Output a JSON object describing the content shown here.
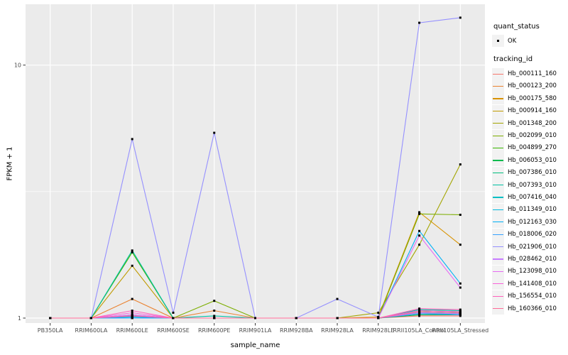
{
  "chart_data": {
    "type": "line",
    "title": "",
    "xlabel": "sample_name",
    "ylabel": "FPKM + 1",
    "y_scale": "log10",
    "y_ticks": [
      1,
      10
    ],
    "y_minor_ticks": [
      3.1623
    ],
    "ylim": [
      0.96,
      17.4
    ],
    "grid": "on",
    "legend_position": "right",
    "panel_bg": "#EBEBEB",
    "grid_color": "#FFFFFF",
    "tick_label_color": "#4D4D4D",
    "point_color": "#000000",
    "categories": [
      "PB350LA",
      "RRIM600LA",
      "RRIM600LE",
      "RRIM600SE",
      "RRIM600PE",
      "RRIM901LA",
      "RRIM928BA",
      "RRIM928LA",
      "RRIM928LE",
      "RRII105LA_Control",
      "RRII105LA_Stressed"
    ],
    "legend": {
      "quant_status_title": "quant_status",
      "quant_status_items": [
        {
          "label": "OK",
          "marker": "black-point"
        }
      ],
      "tracking_id_title": "tracking_id"
    },
    "series": [
      {
        "name": "Hb_000111_160",
        "color": "#F8766D",
        "values": [
          1,
          1,
          1.0,
          1,
          1.0,
          1,
          1,
          1,
          1,
          1.02,
          1.02
        ]
      },
      {
        "name": "Hb_000123_200",
        "color": "#EA8331",
        "values": [
          1,
          1,
          1.19,
          1,
          1.07,
          1,
          1,
          1,
          1,
          1.05,
          1.04
        ]
      },
      {
        "name": "Hb_000175_580",
        "color": "#D89200",
        "values": [
          1,
          1,
          1.02,
          1,
          1.0,
          1,
          1,
          1,
          1.01,
          2.62,
          1.95
        ]
      },
      {
        "name": "Hb_000914_160",
        "color": "#C09B00",
        "values": [
          1,
          1,
          1.61,
          1,
          1.0,
          1,
          1,
          1,
          1,
          1.06,
          1.05
        ]
      },
      {
        "name": "Hb_001348_200",
        "color": "#A3A500",
        "values": [
          1,
          1,
          1.02,
          1,
          1.0,
          1,
          1,
          1,
          1.05,
          1.95,
          4.05
        ]
      },
      {
        "name": "Hb_002099_010",
        "color": "#7CAE00",
        "values": [
          1,
          1,
          1.0,
          1,
          1.17,
          1,
          1,
          1,
          1,
          2.58,
          2.56
        ]
      },
      {
        "name": "Hb_004899_270",
        "color": "#39B600",
        "values": [
          1,
          1,
          1.82,
          1,
          1.0,
          1,
          1,
          1,
          1,
          1.07,
          1.06
        ]
      },
      {
        "name": "Hb_006053_010",
        "color": "#00BB4E",
        "values": [
          1,
          1,
          1.02,
          1,
          1.0,
          1,
          1,
          1,
          1,
          1.03,
          1.03
        ]
      },
      {
        "name": "Hb_007386_010",
        "color": "#00BF7D",
        "values": [
          1,
          1,
          1.01,
          1,
          1.0,
          1,
          1,
          1,
          1,
          1.04,
          1.04
        ]
      },
      {
        "name": "Hb_007393_010",
        "color": "#00C1A3",
        "values": [
          1,
          1,
          1.85,
          1,
          1.02,
          1,
          1,
          1,
          1,
          1.08,
          1.07
        ]
      },
      {
        "name": "Hb_007416_040",
        "color": "#00BFC4",
        "values": [
          1,
          1,
          1.03,
          1,
          1.0,
          1,
          1,
          1,
          1,
          1.05,
          1.04
        ]
      },
      {
        "name": "Hb_011349_010",
        "color": "#00BAE0",
        "values": [
          1,
          1,
          1.0,
          1,
          1.0,
          1,
          1,
          1,
          1,
          1.06,
          1.05
        ]
      },
      {
        "name": "Hb_012163_030",
        "color": "#00B0F6",
        "values": [
          1,
          1,
          1.01,
          1,
          1.0,
          1,
          1,
          1,
          1,
          2.21,
          1.37
        ]
      },
      {
        "name": "Hb_018006_020",
        "color": "#35A2FF",
        "values": [
          1,
          1,
          1.0,
          1,
          1.0,
          1,
          1,
          1,
          1,
          1.04,
          1.03
        ]
      },
      {
        "name": "Hb_021906_010",
        "color": "#9590FF",
        "values": [
          1,
          1,
          5.1,
          1.05,
          5.4,
          1,
          1,
          1.19,
          1.01,
          14.7,
          15.4
        ]
      },
      {
        "name": "Hb_028462_010",
        "color": "#C77CFF",
        "values": [
          1,
          1,
          1.02,
          1,
          1.0,
          1,
          1,
          1,
          1,
          1.05,
          1.04
        ]
      },
      {
        "name": "Hb_123098_010",
        "color": "#E76BF3",
        "values": [
          1,
          1,
          1.03,
          1,
          1.0,
          1,
          1,
          1,
          1,
          2.12,
          1.32
        ]
      },
      {
        "name": "Hb_141408_010",
        "color": "#FA62DB",
        "values": [
          1,
          1,
          1.05,
          1,
          1.0,
          1,
          1,
          1,
          1,
          1.07,
          1.06
        ]
      },
      {
        "name": "Hb_156554_010",
        "color": "#FF62BC",
        "values": [
          1,
          1,
          1.07,
          1,
          1.0,
          1,
          1,
          1,
          1,
          1.09,
          1.08
        ]
      },
      {
        "name": "Hb_160366_010",
        "color": "#FF6A98",
        "values": [
          1,
          1,
          1.02,
          1,
          1.0,
          1,
          1,
          1,
          1,
          1.06,
          1.05
        ]
      }
    ]
  }
}
